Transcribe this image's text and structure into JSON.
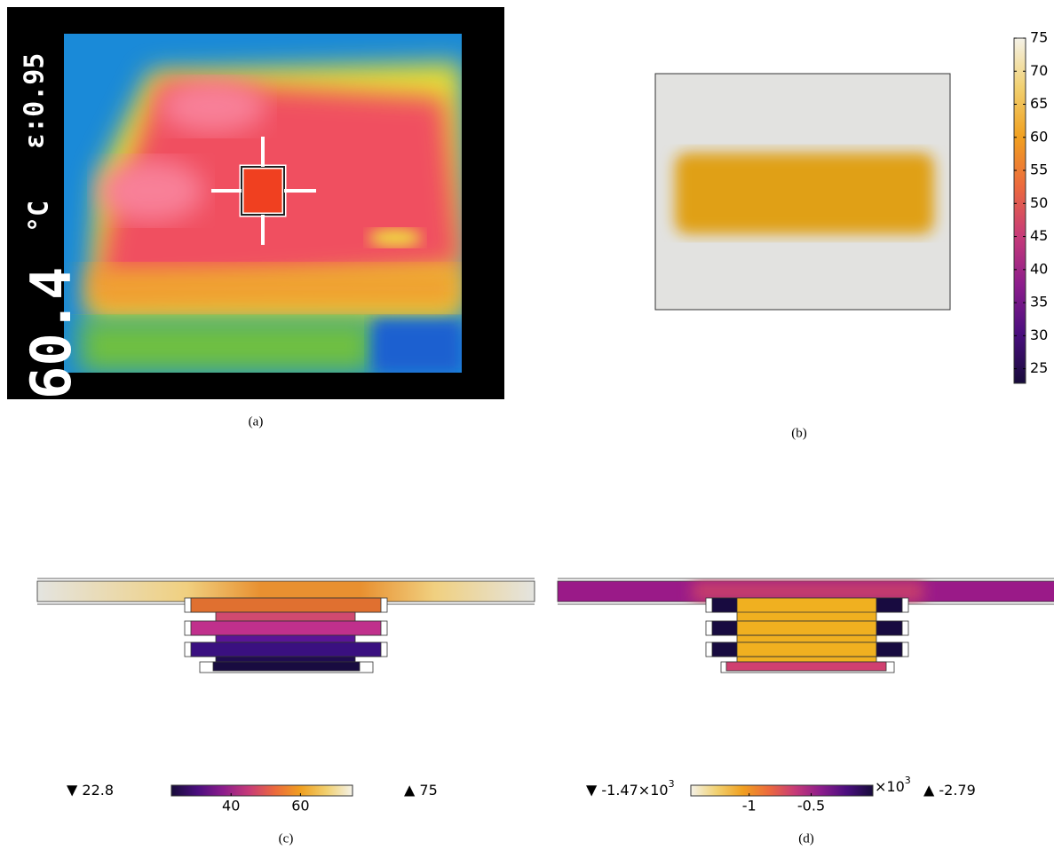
{
  "panels": [
    {
      "caption": "(a)",
      "readout": "60.4",
      "unit": "°C",
      "emissivity": "ε:0.95"
    },
    {
      "caption": "(b)",
      "colorbar": {
        "lim": [
          22.8,
          75
        ],
        "ticks": [
          25,
          30,
          35,
          40,
          45,
          50,
          55,
          60,
          65,
          70,
          75
        ],
        "colors": [
          "#170c3a",
          "#4a0e7e",
          "#8c1d8c",
          "#c73b78",
          "#ec6a3d",
          "#f0a020",
          "#f1d070",
          "#f4f2e8"
        ]
      }
    },
    {
      "caption": "(c)",
      "min_label": "22.8",
      "max_label": "75",
      "colorbar": {
        "lim": [
          22.8,
          75
        ],
        "ticks": [
          40,
          60
        ],
        "colors": [
          "#170c3a",
          "#4a0e7e",
          "#8c1d8c",
          "#c73b78",
          "#ec6a3d",
          "#f0a020",
          "#f1d070",
          "#f4f2e8"
        ]
      }
    },
    {
      "caption": "(d)",
      "min_label": "-1.47×10",
      "min_exp": "3",
      "max_label": "-2.79",
      "multiplier": "×10",
      "multiplier_exp": "3",
      "colorbar": {
        "lim": [
          -1.47,
          -0.00279
        ],
        "ticks": [
          -1,
          -0.5
        ],
        "colors": [
          "#f4f2e8",
          "#f1d070",
          "#f0a020",
          "#ec6a3d",
          "#c73b78",
          "#8c1d8c",
          "#4a0e7e",
          "#170c3a"
        ]
      }
    }
  ]
}
